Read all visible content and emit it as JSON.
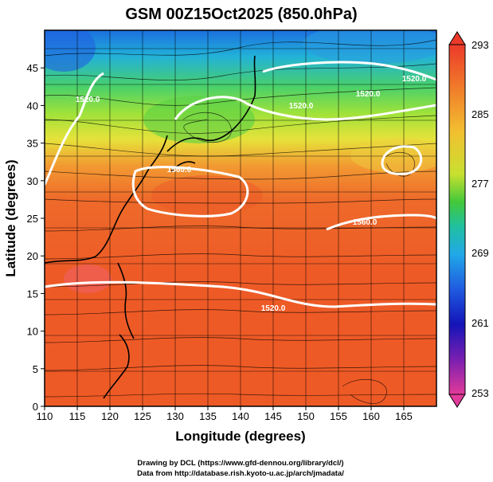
{
  "title": "GSM 00Z15Oct2025 (850.0hPa)",
  "xlabel": "Longitude (degrees)",
  "ylabel": "Latitude  (degrees)",
  "credits": [
    "Drawing by DCL (https://www.gfd-dennou.org/library/dcl/)",
    "Data from http://database.rish.kyoto-u.ac.jp/arch/jmadata/"
  ],
  "colorbar": {
    "labels": [
      "293",
      "285",
      "277",
      "269",
      "261",
      "253"
    ],
    "min": 253,
    "max": 293
  },
  "contour_labels": [
    "1520.0",
    "1520.0",
    "1520.0",
    "1560.0",
    "1560.0",
    "1520.0",
    "1520.0"
  ],
  "colors": {
    "contour": "#ffffff",
    "streamline": "#000000",
    "coast": "#000000"
  },
  "chart_data": {
    "type": "heatmap",
    "title": "GSM 00Z15Oct2025 (850.0hPa)",
    "xlabel": "Longitude (degrees)",
    "ylabel": "Latitude  (degrees)",
    "xlim": [
      110,
      170
    ],
    "ylim": [
      0,
      50
    ],
    "xticks": [
      110,
      115,
      120,
      125,
      130,
      135,
      140,
      145,
      150,
      155,
      160,
      165
    ],
    "yticks": [
      0,
      5,
      10,
      15,
      20,
      25,
      30,
      35,
      40,
      45
    ],
    "color_range": [
      253,
      293
    ],
    "grid": true,
    "temperature_profile": [
      {
        "lat": 0,
        "value": 289
      },
      {
        "lat": 10,
        "value": 290
      },
      {
        "lat": 20,
        "value": 289
      },
      {
        "lat": 30,
        "value": 287
      },
      {
        "lat": 35,
        "value": 283
      },
      {
        "lat": 40,
        "value": 277
      },
      {
        "lat": 45,
        "value": 272
      },
      {
        "lat": 50,
        "value": 266
      }
    ]
  }
}
